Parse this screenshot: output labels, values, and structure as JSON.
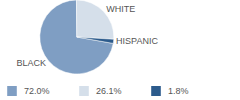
{
  "chart_data": {
    "type": "pie",
    "categories": [
      "BLACK",
      "WHITE",
      "HISPANIC"
    ],
    "values": [
      72.0,
      26.1,
      1.8
    ],
    "value_labels": [
      "72.0%",
      "26.1%",
      "1.8%"
    ],
    "colors": [
      "#7f9ec3",
      "#d5dfea",
      "#2c5b8c"
    ]
  }
}
